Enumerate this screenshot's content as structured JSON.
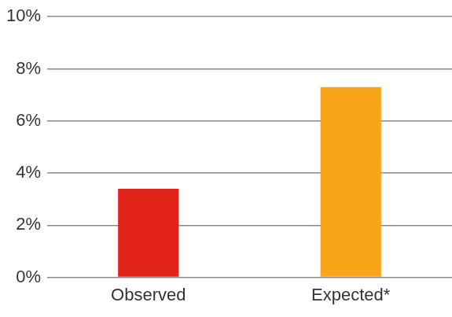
{
  "chart_data": {
    "type": "bar",
    "categories": [
      "Observed",
      "Expected*"
    ],
    "values": [
      3.4,
      7.3
    ],
    "colors": [
      "#e2231a",
      "#f9a51a"
    ],
    "ylim": [
      0,
      10
    ],
    "yticks": [
      {
        "value": 0,
        "label": "0%"
      },
      {
        "value": 2,
        "label": "2%"
      },
      {
        "value": 4,
        "label": "4%"
      },
      {
        "value": 6,
        "label": "6%"
      },
      {
        "value": 8,
        "label": "8%"
      },
      {
        "value": 10,
        "label": "10%"
      }
    ],
    "grid": true
  }
}
